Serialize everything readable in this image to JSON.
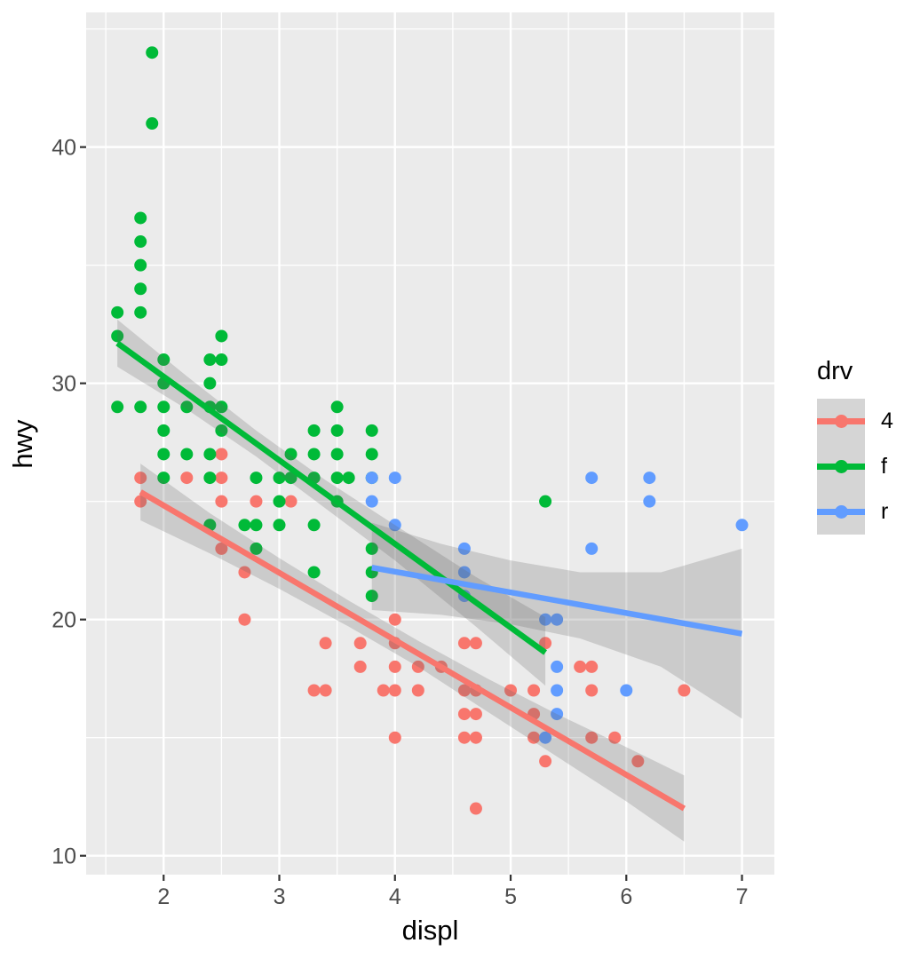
{
  "chart_data": {
    "type": "scatter",
    "title": "",
    "xlabel": "displ",
    "ylabel": "hwy",
    "xlim": [
      1.33,
      7.28
    ],
    "ylim": [
      9.2,
      45.7
    ],
    "x_major_ticks": [
      2,
      3,
      4,
      5,
      6,
      7
    ],
    "x_minor_ticks": [
      1.5,
      2.5,
      3.5,
      4.5,
      5.5,
      6.5
    ],
    "y_major_ticks": [
      10,
      20,
      30,
      40
    ],
    "y_minor_ticks": [
      15,
      25,
      35,
      45
    ],
    "grid": "on",
    "panel_bg": "#EBEBEB",
    "grid_color": "#FFFFFF",
    "tick_color": "#333333",
    "tick_label_color": "#4D4D4D",
    "axis_title_color": "#000000",
    "band_fill": "#646464",
    "band_opacity": 0.24,
    "legend": {
      "title": "drv",
      "position": "right",
      "key_bg": "#D5D5D5"
    },
    "series": [
      {
        "name": "4",
        "color": "#F8766D",
        "points": [
          [
            1.8,
            26
          ],
          [
            1.8,
            25
          ],
          [
            2.2,
            26
          ],
          [
            2.5,
            27
          ],
          [
            2.5,
            26
          ],
          [
            2.5,
            25
          ],
          [
            2.5,
            23
          ],
          [
            2.7,
            22
          ],
          [
            2.7,
            20
          ],
          [
            2.8,
            25
          ],
          [
            3.1,
            25
          ],
          [
            3.3,
            17
          ],
          [
            3.4,
            19
          ],
          [
            3.4,
            17
          ],
          [
            3.7,
            19
          ],
          [
            3.7,
            18
          ],
          [
            3.9,
            17
          ],
          [
            4.0,
            20
          ],
          [
            4.0,
            19
          ],
          [
            4.0,
            18
          ],
          [
            4.0,
            17
          ],
          [
            4.0,
            15
          ],
          [
            4.2,
            18
          ],
          [
            4.2,
            17
          ],
          [
            4.4,
            18
          ],
          [
            4.6,
            19
          ],
          [
            4.6,
            17
          ],
          [
            4.6,
            16
          ],
          [
            4.6,
            15
          ],
          [
            4.7,
            19
          ],
          [
            4.7,
            17
          ],
          [
            4.7,
            16
          ],
          [
            4.7,
            15
          ],
          [
            4.7,
            12
          ],
          [
            5.0,
            17
          ],
          [
            5.2,
            17
          ],
          [
            5.2,
            16
          ],
          [
            5.2,
            15
          ],
          [
            5.3,
            19
          ],
          [
            5.3,
            14
          ],
          [
            5.6,
            18
          ],
          [
            5.7,
            18
          ],
          [
            5.7,
            17
          ],
          [
            5.7,
            15
          ],
          [
            5.9,
            15
          ],
          [
            6.1,
            14
          ],
          [
            6.5,
            17
          ]
        ]
      },
      {
        "name": "f",
        "color": "#00BA38",
        "points": [
          [
            1.6,
            33
          ],
          [
            1.6,
            32
          ],
          [
            1.6,
            29
          ],
          [
            1.8,
            37
          ],
          [
            1.8,
            36
          ],
          [
            1.8,
            35
          ],
          [
            1.8,
            34
          ],
          [
            1.8,
            33
          ],
          [
            1.8,
            29
          ],
          [
            1.9,
            44
          ],
          [
            1.9,
            41
          ],
          [
            2.0,
            31
          ],
          [
            2.0,
            30
          ],
          [
            2.0,
            29
          ],
          [
            2.0,
            28
          ],
          [
            2.0,
            27
          ],
          [
            2.0,
            26
          ],
          [
            2.2,
            29
          ],
          [
            2.2,
            27
          ],
          [
            2.4,
            31
          ],
          [
            2.4,
            30
          ],
          [
            2.4,
            29
          ],
          [
            2.4,
            27
          ],
          [
            2.4,
            26
          ],
          [
            2.4,
            24
          ],
          [
            2.5,
            32
          ],
          [
            2.5,
            31
          ],
          [
            2.5,
            29
          ],
          [
            2.5,
            28
          ],
          [
            2.7,
            24
          ],
          [
            2.8,
            26
          ],
          [
            2.8,
            24
          ],
          [
            2.8,
            23
          ],
          [
            3.0,
            26
          ],
          [
            3.0,
            25
          ],
          [
            3.0,
            24
          ],
          [
            3.1,
            27
          ],
          [
            3.1,
            26
          ],
          [
            3.3,
            28
          ],
          [
            3.3,
            27
          ],
          [
            3.3,
            26
          ],
          [
            3.3,
            24
          ],
          [
            3.3,
            22
          ],
          [
            3.5,
            29
          ],
          [
            3.5,
            28
          ],
          [
            3.5,
            27
          ],
          [
            3.5,
            26
          ],
          [
            3.5,
            25
          ],
          [
            3.6,
            26
          ],
          [
            3.8,
            28
          ],
          [
            3.8,
            27
          ],
          [
            3.8,
            26
          ],
          [
            3.8,
            23
          ],
          [
            3.8,
            22
          ],
          [
            3.8,
            21
          ],
          [
            5.3,
            25
          ]
        ]
      },
      {
        "name": "r",
        "color": "#619CFF",
        "points": [
          [
            3.8,
            26
          ],
          [
            3.8,
            25
          ],
          [
            4.0,
            26
          ],
          [
            4.0,
            24
          ],
          [
            4.6,
            23
          ],
          [
            4.6,
            22
          ],
          [
            4.6,
            21
          ],
          [
            5.3,
            20
          ],
          [
            5.4,
            20
          ],
          [
            5.4,
            18
          ],
          [
            5.4,
            17
          ],
          [
            5.4,
            16
          ],
          [
            5.3,
            15
          ],
          [
            5.7,
            26
          ],
          [
            5.7,
            23
          ],
          [
            6.0,
            17
          ],
          [
            6.2,
            26
          ],
          [
            6.2,
            25
          ],
          [
            7.0,
            24
          ]
        ]
      }
    ],
    "smooth": [
      {
        "name": "4",
        "color": "#F8766D",
        "method": "lm",
        "line": [
          [
            1.8,
            25.4
          ],
          [
            6.5,
            12.0
          ]
        ],
        "band": [
          [
            1.8,
            24.2,
            26.6
          ],
          [
            2.4,
            22.8,
            24.5
          ],
          [
            3.0,
            21.3,
            22.6
          ],
          [
            3.6,
            19.7,
            20.8
          ],
          [
            4.2,
            18.0,
            19.1
          ],
          [
            4.8,
            16.1,
            17.5
          ],
          [
            5.4,
            14.2,
            16.0
          ],
          [
            6.0,
            12.3,
            14.6
          ],
          [
            6.5,
            10.6,
            13.4
          ]
        ]
      },
      {
        "name": "f",
        "color": "#00BA38",
        "method": "lm",
        "line": [
          [
            1.6,
            31.7
          ],
          [
            5.3,
            18.6
          ]
        ],
        "band": [
          [
            1.6,
            30.7,
            32.7
          ],
          [
            2.2,
            28.9,
            30.3
          ],
          [
            2.8,
            26.9,
            28.0
          ],
          [
            3.4,
            24.7,
            25.9
          ],
          [
            4.0,
            22.5,
            24.0
          ],
          [
            4.7,
            19.7,
            21.8
          ],
          [
            5.3,
            17.2,
            20.1
          ]
        ]
      },
      {
        "name": "r",
        "color": "#619CFF",
        "method": "lm",
        "line": [
          [
            3.8,
            22.2
          ],
          [
            7.0,
            19.4
          ]
        ],
        "band": [
          [
            3.8,
            20.4,
            24.1
          ],
          [
            4.4,
            20.2,
            23.2
          ],
          [
            5.0,
            19.8,
            22.5
          ],
          [
            5.6,
            19.2,
            22.0
          ],
          [
            6.3,
            18.0,
            22.0
          ],
          [
            7.0,
            15.8,
            23.0
          ]
        ]
      }
    ]
  }
}
